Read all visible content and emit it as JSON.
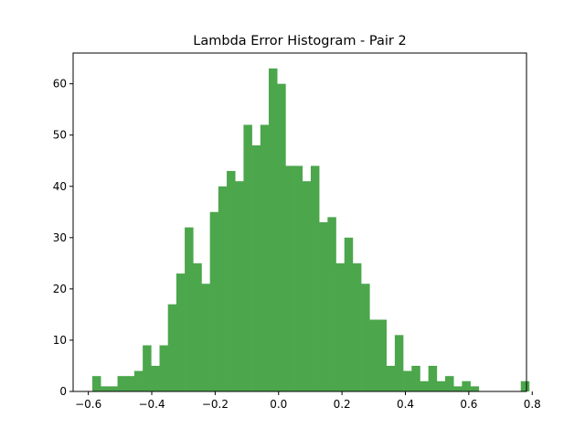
{
  "chart_data": {
    "type": "bar",
    "title": "Lambda Error Histogram - Pair 2",
    "xlabel": "",
    "ylabel": "",
    "xlim": [
      -0.648,
      0.782
    ],
    "ylim": [
      0,
      66
    ],
    "bin_start": -0.5875,
    "bin_width": 0.0265,
    "values": [
      3,
      1,
      1,
      3,
      3,
      4,
      9,
      5,
      9,
      17,
      23,
      32,
      25,
      21,
      35,
      40,
      43,
      41,
      52,
      48,
      52,
      63,
      60,
      44,
      44,
      41,
      44,
      33,
      34,
      25,
      30,
      25,
      21,
      14,
      14,
      5,
      11,
      4,
      5,
      2,
      5,
      2,
      3,
      1,
      2,
      1,
      0,
      0,
      0,
      0,
      0,
      2
    ],
    "x_ticks": [
      -0.6,
      -0.4,
      -0.2,
      0.0,
      0.2,
      0.4,
      0.6,
      0.8
    ],
    "x_tick_labels": [
      "−0.6",
      "−0.4",
      "−0.2",
      "0.0",
      "0.2",
      "0.4",
      "0.6",
      "0.8"
    ],
    "y_ticks": [
      0,
      10,
      20,
      30,
      40,
      50,
      60
    ],
    "y_tick_labels": [
      "0",
      "10",
      "20",
      "30",
      "40",
      "50",
      "60"
    ],
    "bar_color": "#4ca64c",
    "grid": false,
    "legend": "none"
  }
}
